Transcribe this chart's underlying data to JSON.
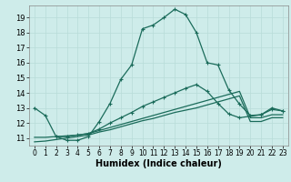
{
  "xlabel": "Humidex (Indice chaleur)",
  "background_color": "#ceecea",
  "grid_color": "#b8dcd8",
  "line_color": "#1a6b5a",
  "xlim": [
    -0.5,
    23.5
  ],
  "ylim": [
    10.5,
    19.8
  ],
  "xticks": [
    0,
    1,
    2,
    3,
    4,
    5,
    6,
    7,
    8,
    9,
    10,
    11,
    12,
    13,
    14,
    15,
    16,
    17,
    18,
    19,
    20,
    21,
    22,
    23
  ],
  "yticks": [
    11,
    12,
    13,
    14,
    15,
    16,
    17,
    18,
    19
  ],
  "line1_x": [
    0,
    1,
    2,
    3,
    4,
    5,
    6,
    7,
    8,
    9,
    10,
    11,
    12,
    13,
    14,
    15,
    16,
    17,
    18,
    19,
    20,
    21,
    22,
    23
  ],
  "line1_y": [
    13.0,
    12.5,
    11.1,
    10.85,
    10.85,
    11.1,
    12.1,
    13.3,
    14.9,
    15.85,
    18.25,
    18.5,
    19.0,
    19.55,
    19.2,
    18.0,
    16.0,
    15.85,
    14.2,
    13.25,
    12.5,
    12.55,
    13.0,
    12.8
  ],
  "line2_x": [
    2,
    3,
    4,
    5,
    6,
    7,
    8,
    9,
    10,
    11,
    12,
    13,
    14,
    15,
    16,
    17,
    18,
    19,
    21,
    22,
    23
  ],
  "line2_y": [
    11.1,
    11.1,
    11.2,
    11.3,
    11.6,
    12.0,
    12.35,
    12.7,
    13.1,
    13.4,
    13.7,
    14.0,
    14.3,
    14.55,
    14.1,
    13.3,
    12.6,
    12.35,
    12.55,
    12.9,
    12.8
  ],
  "line3_x": [
    0,
    1,
    2,
    3,
    4,
    5,
    6,
    7,
    8,
    9,
    10,
    11,
    12,
    13,
    14,
    15,
    16,
    17,
    18,
    19,
    20,
    21,
    22,
    23
  ],
  "line3_y": [
    11.05,
    11.05,
    11.1,
    11.15,
    11.2,
    11.3,
    11.5,
    11.7,
    11.9,
    12.1,
    12.3,
    12.5,
    12.7,
    12.9,
    13.1,
    13.3,
    13.5,
    13.7,
    13.9,
    14.1,
    12.35,
    12.35,
    12.55,
    12.55
  ],
  "line4_x": [
    0,
    1,
    2,
    3,
    4,
    5,
    6,
    7,
    8,
    9,
    10,
    11,
    12,
    13,
    14,
    15,
    16,
    17,
    18,
    19,
    20,
    21,
    22,
    23
  ],
  "line4_y": [
    10.75,
    10.8,
    10.9,
    11.0,
    11.1,
    11.2,
    11.4,
    11.55,
    11.75,
    11.95,
    12.15,
    12.3,
    12.5,
    12.7,
    12.85,
    13.0,
    13.2,
    13.4,
    13.6,
    13.8,
    12.1,
    12.1,
    12.35,
    12.35
  ]
}
